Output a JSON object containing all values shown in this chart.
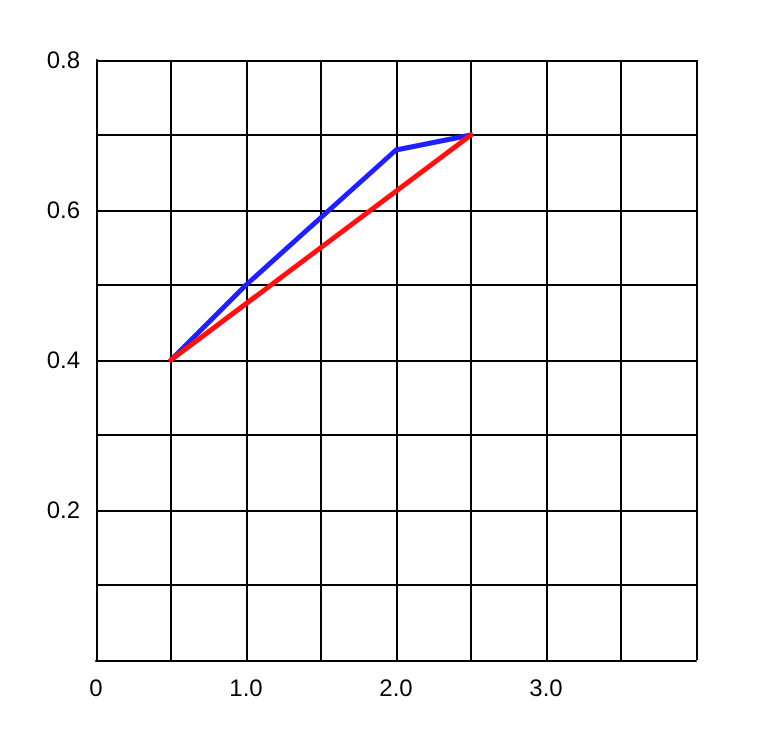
{
  "chart_data": {
    "type": "line",
    "x": [
      0.5,
      1.0,
      2.0,
      2.5
    ],
    "series": [
      {
        "color": "#1f1fff",
        "values": [
          0.4,
          0.5,
          0.68,
          0.7
        ]
      },
      {
        "color": "#ff1010",
        "x": [
          0.5,
          2.5
        ],
        "values": [
          0.4,
          0.7
        ]
      }
    ],
    "xlim": [
      0,
      4
    ],
    "ylim": [
      0,
      0.8
    ],
    "xticks": [
      0,
      {
        "value": 0.5,
        "label": null
      },
      {
        "value": 1,
        "label": "1.0"
      },
      {
        "value": 1.5,
        "label": null
      },
      {
        "value": 2,
        "label": "2.0"
      },
      {
        "value": 2.5,
        "label": null
      },
      {
        "value": 3,
        "label": "3.0"
      },
      {
        "value": 3.5,
        "label": null
      },
      {
        "value": 4,
        "label": null
      }
    ],
    "yticks": [
      {
        "value": 0,
        "label": null
      },
      {
        "value": 0.1,
        "label": null
      },
      0.2,
      {
        "value": 0.3,
        "label": null
      },
      0.4,
      {
        "value": 0.5,
        "label": null
      },
      0.6,
      {
        "value": 0.7,
        "label": null
      },
      0.8
    ],
    "grid": true,
    "marker": "none",
    "line_style": "solid"
  }
}
